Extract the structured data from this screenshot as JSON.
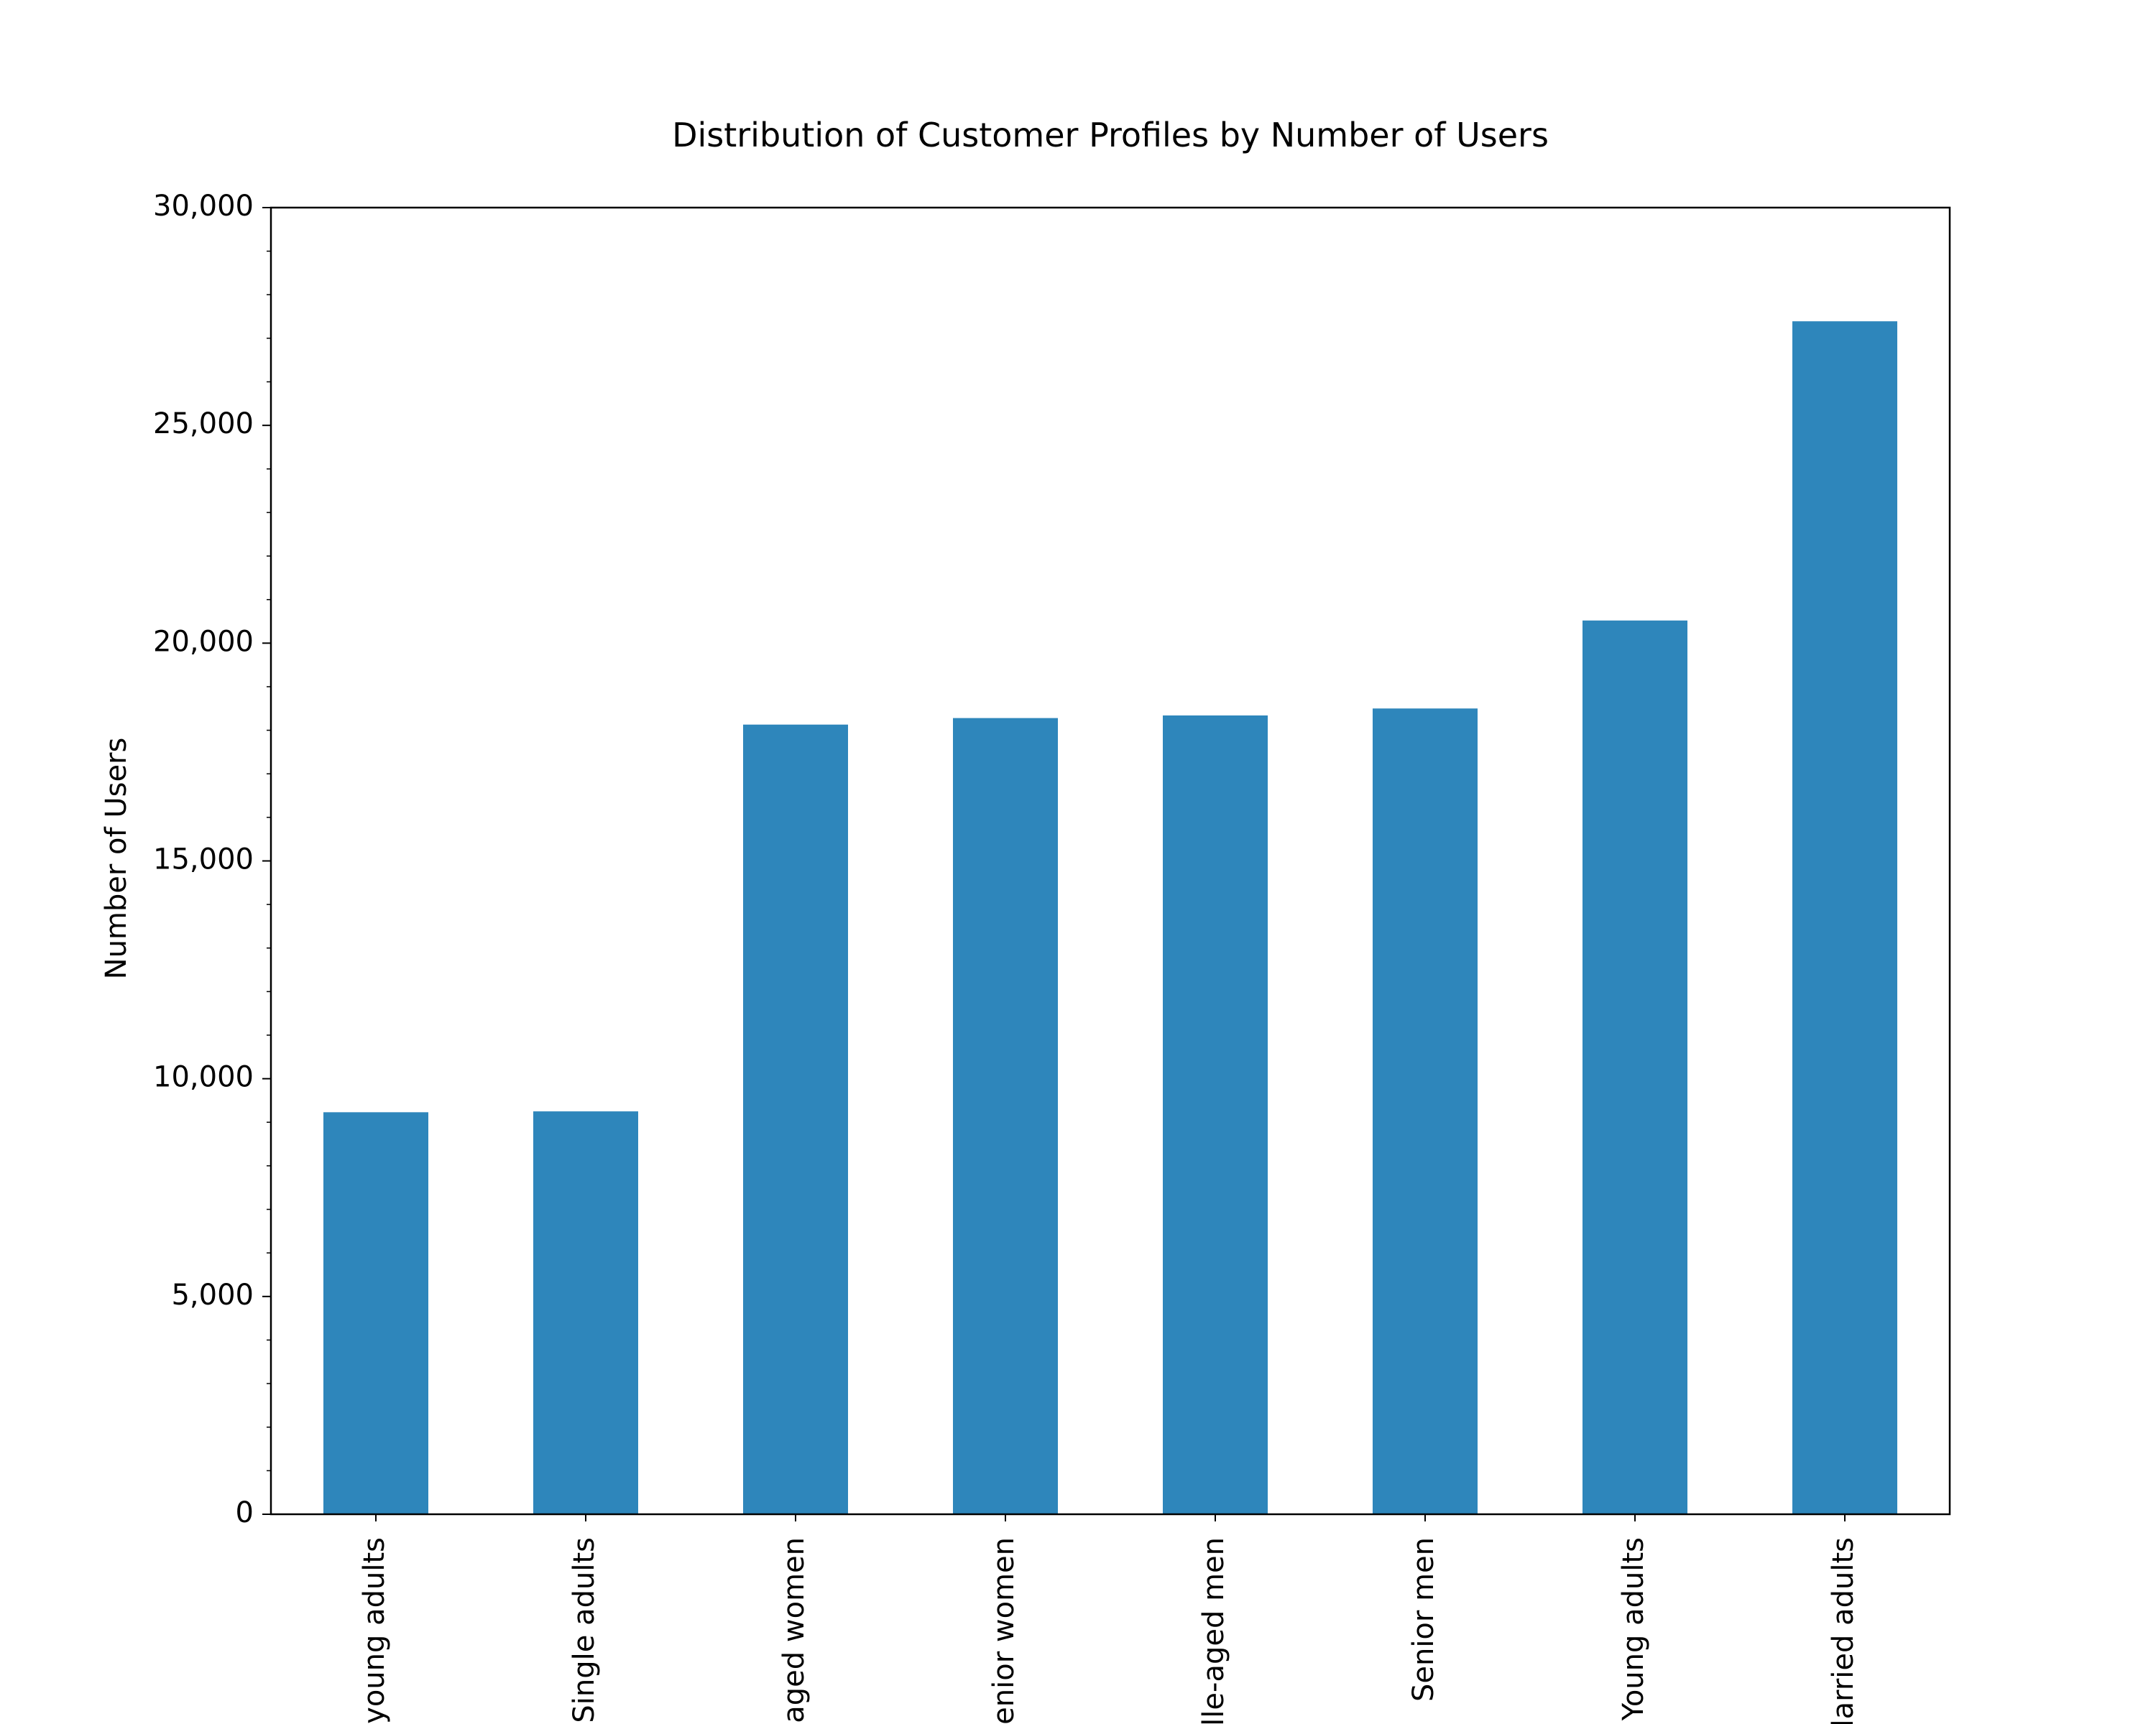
{
  "chart_data": {
    "type": "bar",
    "title": "Distribution of Customer Profiles by Number of Users",
    "xlabel": "",
    "ylabel": "Number of Users",
    "categories": [
      "young adults",
      "Single adults",
      "aged women",
      "enior women",
      "lle-aged men",
      "Senior men",
      "Young adults",
      "larried adults"
    ],
    "values": [
      9230,
      9250,
      18130,
      18280,
      18340,
      18500,
      20520,
      27390
    ],
    "ylim": [
      0,
      30000
    ],
    "yticks": [
      0,
      5000,
      10000,
      15000,
      20000,
      25000,
      30000
    ],
    "ytick_labels": [
      "0",
      "5,000",
      "10,000",
      "15,000",
      "20,000",
      "25,000",
      "30,000"
    ],
    "grid": false,
    "legend": "none",
    "bar_color": "#2e86bb"
  }
}
